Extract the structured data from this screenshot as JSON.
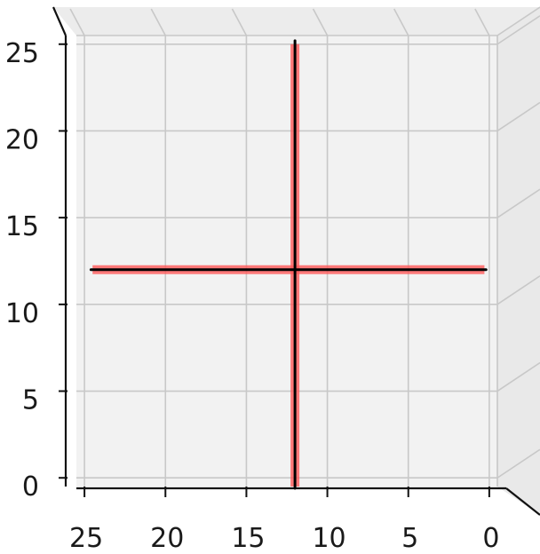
{
  "chart_data": {
    "type": "line",
    "projection": "3d-top-view",
    "title": "",
    "xlabel": "",
    "ylabel": "",
    "xlim": [
      25.5,
      -0.5
    ],
    "ylim": [
      25.5,
      -0.5
    ],
    "x_ticks": [
      25,
      20,
      15,
      10,
      5,
      0
    ],
    "x_tick_labels": [
      "25",
      "20",
      "15",
      "10",
      "5",
      "0"
    ],
    "y_ticks": [
      0,
      5,
      10,
      15,
      20,
      25
    ],
    "y_tick_labels": [
      "0",
      "5",
      "10",
      "15",
      "20",
      "25"
    ],
    "grid": true,
    "background": "#f2f2f2",
    "series": [
      {
        "color": "#ff5a5a",
        "alpha": 0.8,
        "style": "thick",
        "segments": [
          {
            "x": [
              12,
              12
            ],
            "y": [
              -0.5,
              25
            ]
          },
          {
            "x": [
              24.5,
              0.3
            ],
            "y": [
              12,
              12
            ]
          }
        ]
      },
      {
        "color": "#000000",
        "alpha": 1.0,
        "style": "thin",
        "segments": [
          {
            "x": [
              12,
              12
            ],
            "y": [
              -0.6,
              25.2
            ]
          },
          {
            "x": [
              24.6,
              0.2
            ],
            "y": [
              12,
              12
            ]
          }
        ]
      }
    ]
  }
}
